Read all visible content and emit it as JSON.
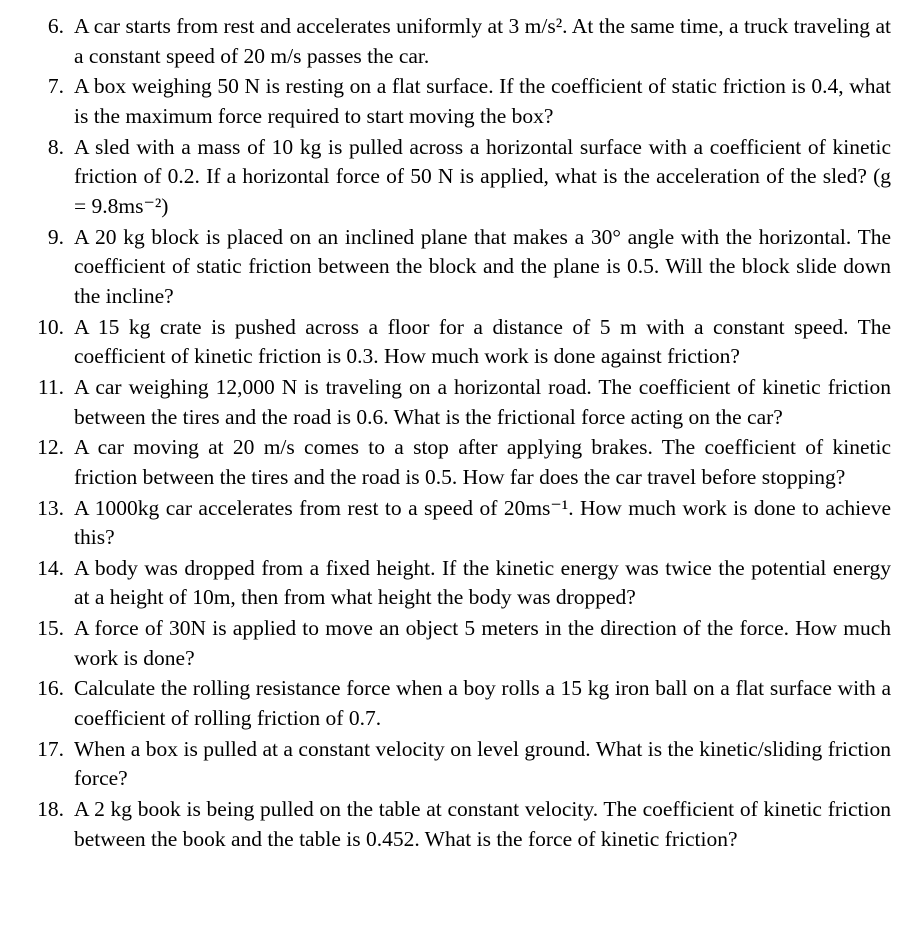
{
  "problems": [
    {
      "number": "6.",
      "text": "A car starts from rest and accelerates uniformly at 3 m/s². At the same time, a truck traveling at a constant speed of 20 m/s passes the car."
    },
    {
      "number": "7.",
      "text": "A box weighing 50 N is resting on a flat surface. If the coefficient of static friction is 0.4, what is the maximum force required to start moving the box?"
    },
    {
      "number": "8.",
      "text": "A sled with a mass of 10 kg is pulled across a horizontal surface with a coefficient of kinetic friction of 0.2. If a horizontal force of 50 N is applied, what is the acceleration of the sled? (g = 9.8ms⁻²)"
    },
    {
      "number": "9.",
      "text": "A 20 kg block is placed on an inclined plane that makes a 30° angle with the horizontal. The coefficient of static friction between the block and the plane is 0.5. Will the block slide down the incline?"
    },
    {
      "number": "10.",
      "text": "A 15 kg crate is pushed across a floor for a distance of 5 m with a constant speed. The coefficient of kinetic friction is 0.3. How much work is done against friction?"
    },
    {
      "number": "11.",
      "text": "A car weighing 12,000 N is traveling on a horizontal road. The coefficient of kinetic friction between the tires and the road is 0.6. What is the frictional force acting on the car?"
    },
    {
      "number": "12.",
      "text": "A car moving at 20 m/s comes to a stop after applying brakes. The coefficient of kinetic friction between the tires and the road is 0.5. How far does the car travel before stopping?"
    },
    {
      "number": "13.",
      "text": "A 1000kg car accelerates from rest to a speed of 20ms⁻¹. How much work is done to achieve this?"
    },
    {
      "number": "14.",
      "text": "A body was dropped from a fixed height. If the kinetic energy was twice the potential energy at a height of 10m, then from what height the body was dropped?"
    },
    {
      "number": "15.",
      "text": "A force of 30N is applied to move an object 5 meters in the direction of the force. How much work is done?"
    },
    {
      "number": "16.",
      "text": "Calculate the rolling resistance force when a boy rolls a 15 kg iron ball on a flat surface with a coefficient of rolling friction of 0.7."
    },
    {
      "number": "17.",
      "text": "When a box is pulled at a constant velocity on level ground. What is the kinetic/sliding friction force?"
    },
    {
      "number": "18.",
      "text": "A 2 kg book is being pulled on the table at constant velocity. The coefficient of kinetic friction between the book and the table is 0.452. What is the force of kinetic friction?"
    }
  ],
  "styling": {
    "font_family": "Times New Roman",
    "font_size_pt": 16,
    "text_color": "#000000",
    "background_color": "#ffffff",
    "text_align": "justify",
    "line_height": 1.38
  }
}
